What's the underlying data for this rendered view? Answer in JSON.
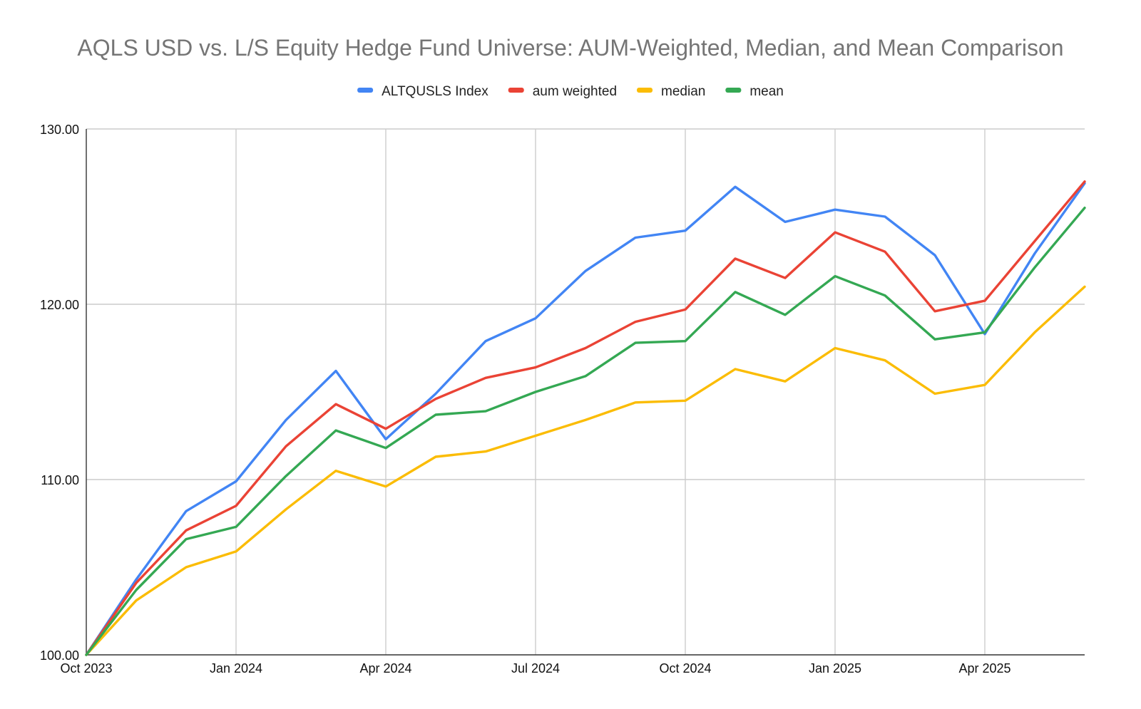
{
  "chart_data": {
    "type": "line",
    "title": "AQLS USD vs. L/S Equity Hedge Fund Universe: AUM-Weighted, Median, and Mean Comparison",
    "xlabel": "",
    "ylabel": "",
    "x": [
      "2023-10",
      "2023-11",
      "2023-12",
      "2024-01",
      "2024-02",
      "2024-03",
      "2024-04",
      "2024-05",
      "2024-06",
      "2024-07",
      "2024-08",
      "2024-09",
      "2024-10",
      "2024-11",
      "2024-12",
      "2025-01",
      "2025-02",
      "2025-03",
      "2025-04",
      "2025-05",
      "2025-06"
    ],
    "x_tick_labels": [
      "Oct 2023",
      "Jan 2024",
      "Apr 2024",
      "Jul 2024",
      "Oct 2024",
      "Jan 2025",
      "Apr 2025"
    ],
    "x_tick_values": [
      "2023-10",
      "2024-01",
      "2024-04",
      "2024-07",
      "2024-10",
      "2025-01",
      "2025-04"
    ],
    "ylim": [
      100,
      130
    ],
    "y_ticks": [
      "100.00",
      "110.00",
      "120.00",
      "130.00"
    ],
    "grid": true,
    "legend_position": "top",
    "series": [
      {
        "name": "ALTQUSLS Index",
        "color": "#4285f4",
        "values": [
          100.0,
          104.3,
          108.2,
          109.9,
          113.4,
          116.2,
          112.3,
          114.9,
          117.9,
          119.2,
          121.9,
          123.8,
          124.2,
          126.7,
          124.7,
          125.4,
          125.0,
          122.8,
          118.3,
          122.9,
          126.9
        ]
      },
      {
        "name": "aum weighted",
        "color": "#ea4335",
        "values": [
          100.0,
          104.1,
          107.1,
          108.5,
          111.9,
          114.3,
          112.9,
          114.6,
          115.8,
          116.4,
          117.5,
          119.0,
          119.7,
          122.6,
          121.5,
          124.1,
          123.0,
          119.6,
          120.2,
          123.6,
          127.0
        ]
      },
      {
        "name": "median",
        "color": "#fbbc04",
        "values": [
          100.0,
          103.1,
          105.0,
          105.9,
          108.3,
          110.5,
          109.6,
          111.3,
          111.6,
          112.5,
          113.4,
          114.4,
          114.5,
          116.3,
          115.6,
          117.5,
          116.8,
          114.9,
          115.4,
          118.4,
          121.0
        ]
      },
      {
        "name": "mean",
        "color": "#34a853",
        "values": [
          100.0,
          103.7,
          106.6,
          107.3,
          110.2,
          112.8,
          111.8,
          113.7,
          113.9,
          115.0,
          115.9,
          117.8,
          117.9,
          120.7,
          119.4,
          121.6,
          120.5,
          118.0,
          118.4,
          122.1,
          125.5
        ]
      }
    ]
  }
}
